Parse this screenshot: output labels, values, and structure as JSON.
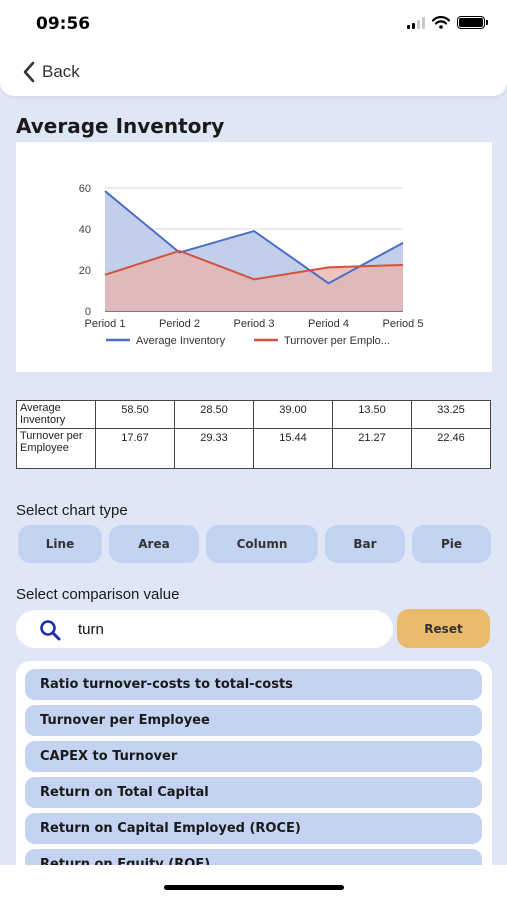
{
  "status": {
    "time": "09:56",
    "signal_icon": "cellular-signal-icon",
    "wifi_icon": "wifi-icon",
    "battery_icon": "battery-icon"
  },
  "nav": {
    "back_label": "Back",
    "back_icon": "chevron-left-icon"
  },
  "page": {
    "title": "Average Inventory"
  },
  "chart_data": {
    "type": "area",
    "categories": [
      "Period 1",
      "Period 2",
      "Period 3",
      "Period 4",
      "Period 5"
    ],
    "y_ticks": [
      "0",
      "20",
      "40",
      "60"
    ],
    "ylim": [
      0,
      60
    ],
    "grid": true,
    "legend_position": "bottom",
    "series": [
      {
        "name": "Average Inventory",
        "legend_label": "Average Inventory",
        "color": "#4a6fc4",
        "fill": "#b9c6e8",
        "values": [
          58.5,
          28.5,
          39.0,
          13.5,
          33.25
        ]
      },
      {
        "name": "Turnover per Employee",
        "legend_label": "Turnover per Emplo...",
        "color": "#d0543f",
        "fill": "#e9b3aa",
        "values": [
          17.67,
          29.33,
          15.44,
          21.27,
          22.46
        ]
      }
    ]
  },
  "table": {
    "rows": [
      {
        "label": "Average Inventory",
        "values": [
          "58.50",
          "28.50",
          "39.00",
          "13.50",
          "33.25"
        ]
      },
      {
        "label": "Turnover per Employee",
        "values": [
          "17.67",
          "29.33",
          "15.44",
          "21.27",
          "22.46"
        ]
      }
    ]
  },
  "chart_type": {
    "label": "Select chart type",
    "buttons": [
      "Line",
      "Area",
      "Column",
      "Bar",
      "Pie"
    ]
  },
  "comparison": {
    "label": "Select comparison value",
    "search_value": "turn",
    "search_icon": "search-icon",
    "reset_label": "Reset",
    "results": [
      "Ratio turnover-costs to total-costs",
      "Turnover per Employee",
      "CAPEX to Turnover",
      "Return on Total Capital",
      "Return on Capital Employed (ROCE)",
      "Return on Equity (ROE)"
    ]
  },
  "colors": {
    "background": "#dfe7f6",
    "chip": "#c3d3f1",
    "reset": "#e8bb6d"
  }
}
